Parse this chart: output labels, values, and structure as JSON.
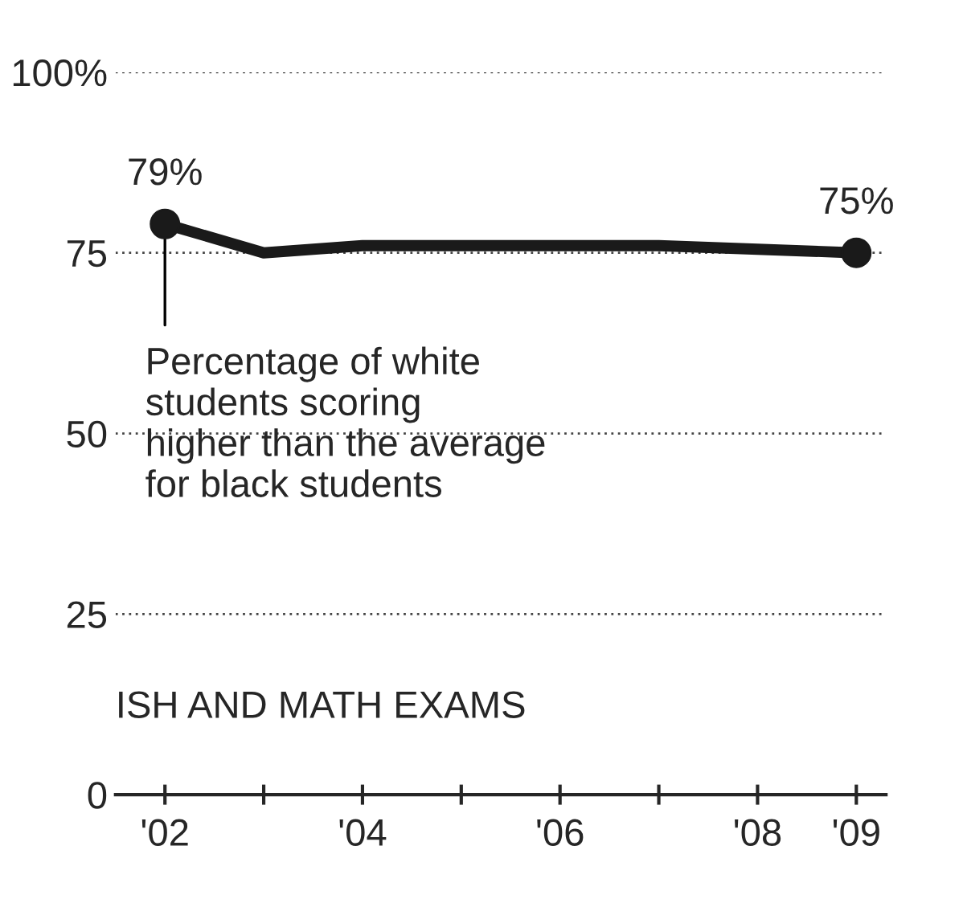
{
  "chart_data": {
    "type": "line",
    "annotations": [
      {
        "text": "Percentage of white\nstudents scoring\nhigher than the average\nfor black students",
        "x": 2002,
        "y": 79
      },
      "ISH AND MATH EXAMS"
    ],
    "x": [
      2002,
      2003,
      2004,
      2005,
      2006,
      2007,
      2008,
      2009
    ],
    "series": [
      {
        "color": "#1a1a1a",
        "values": [
          79,
          75,
          76,
          76,
          76,
          76,
          75.5,
          75
        ],
        "marker": "none"
      },
      {
        "type": "scatter",
        "color": "#1a1a1a",
        "x": [
          2002,
          2009
        ],
        "values": [
          79,
          75
        ],
        "value_labels": [
          "79%",
          "75%"
        ],
        "marker": "circle"
      }
    ],
    "xlim": [
      2001.5,
      2009.3
    ],
    "xticks": [
      {
        "value": 2002,
        "label": "'02"
      },
      {
        "value": 2003,
        "label": null
      },
      {
        "value": 2004,
        "label": "'04"
      },
      {
        "value": 2005,
        "label": null
      },
      {
        "value": 2006,
        "label": "'06"
      },
      {
        "value": 2007,
        "label": null
      },
      {
        "value": 2008,
        "label": "'08"
      },
      {
        "value": 2009,
        "label": "'09"
      }
    ],
    "ylim": [
      0,
      100
    ],
    "yticks": [
      0,
      25,
      50,
      75,
      {
        "value": 100,
        "label": "100%"
      }
    ],
    "grid": "y",
    "legend": false
  }
}
